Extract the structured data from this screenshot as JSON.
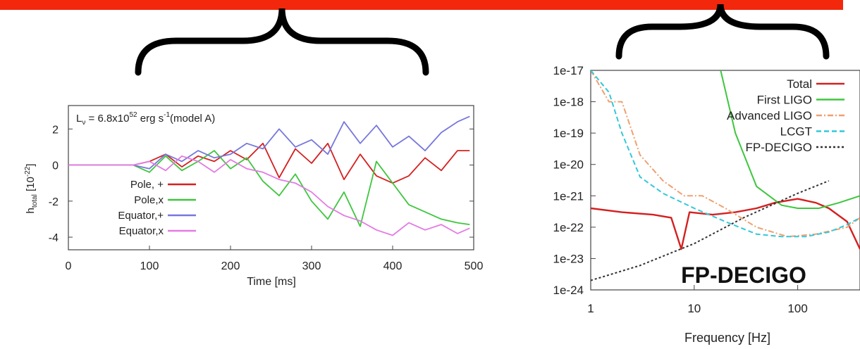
{
  "banner": {
    "color": "#f2270c"
  },
  "charts": {
    "left": {
      "annotation_main": "L",
      "annotation_sub": "ν",
      "annotation_eq": " = 6.8x10",
      "annotation_sup": "52",
      "annotation_unit": " erg s",
      "annotation_unit_sup": "-1",
      "annotation_model": "(model A)",
      "ylabel_main": "h",
      "ylabel_sub": "total",
      "ylabel_unit": " [10",
      "ylabel_unit_sup": "-22",
      "ylabel_close": "]"
    },
    "right": {
      "watermark": "FP-DECIGO"
    }
  },
  "chart_data": [
    {
      "type": "line",
      "xlabel": "Time [ms]",
      "ylabel": "h_total [10^-22]",
      "xlim": [
        0,
        500
      ],
      "ylim": [
        -4.7,
        3.3
      ],
      "xticks": [
        0,
        100,
        200,
        300,
        400,
        500
      ],
      "yticks": [
        2,
        0,
        -2,
        -4
      ],
      "legend_position": "bottom-left",
      "series": [
        {
          "name": "Pole, +",
          "color": "#d42020",
          "x": [
            0,
            80,
            100,
            120,
            140,
            160,
            180,
            200,
            220,
            240,
            260,
            280,
            300,
            320,
            340,
            360,
            380,
            400,
            420,
            440,
            460,
            480,
            495
          ],
          "y": [
            0,
            0,
            0.2,
            0.6,
            -0.1,
            0.5,
            0.2,
            0.8,
            0.3,
            1.2,
            -0.7,
            0.9,
            0.1,
            1.2,
            -0.8,
            0.6,
            -0.6,
            -1.0,
            -0.6,
            0.4,
            -0.3,
            0.8,
            0.8
          ]
        },
        {
          "name": "Pole,x",
          "color": "#3ec63e",
          "x": [
            0,
            80,
            100,
            120,
            140,
            160,
            180,
            200,
            220,
            240,
            260,
            280,
            300,
            320,
            340,
            360,
            380,
            400,
            420,
            440,
            460,
            480,
            495
          ],
          "y": [
            0,
            0,
            -0.4,
            0.5,
            -0.3,
            0.2,
            0.8,
            -0.2,
            0.4,
            -0.9,
            -1.7,
            -0.5,
            -2.0,
            -3.0,
            -1.5,
            -3.4,
            0.2,
            -1.0,
            -2.2,
            -2.6,
            -3.0,
            -3.2,
            -3.3
          ]
        },
        {
          "name": "Equator,+",
          "color": "#7777dd",
          "x": [
            0,
            80,
            100,
            120,
            140,
            160,
            180,
            200,
            220,
            240,
            260,
            280,
            300,
            320,
            340,
            360,
            380,
            400,
            420,
            440,
            460,
            480,
            495
          ],
          "y": [
            0,
            0,
            -0.2,
            0.6,
            0.2,
            0.8,
            0.4,
            0.6,
            1.2,
            0.9,
            2.0,
            1.0,
            1.4,
            0.6,
            2.4,
            1.2,
            2.2,
            1.0,
            1.6,
            0.8,
            1.8,
            2.4,
            2.7
          ]
        },
        {
          "name": "Equator,x",
          "color": "#e37ae3",
          "x": [
            0,
            80,
            100,
            120,
            140,
            160,
            180,
            200,
            220,
            240,
            260,
            280,
            300,
            320,
            340,
            360,
            380,
            400,
            420,
            440,
            460,
            480,
            495
          ],
          "y": [
            0,
            0,
            0.2,
            -0.3,
            0.5,
            0.2,
            -0.4,
            0.3,
            -0.2,
            -0.4,
            -0.8,
            -1.0,
            -1.5,
            -2.3,
            -2.8,
            -3.1,
            -3.6,
            -3.9,
            -3.2,
            -3.6,
            -3.3,
            -3.8,
            -3.5
          ]
        }
      ]
    },
    {
      "type": "line",
      "xlabel": "Frequency [Hz]",
      "xscale": "log",
      "yscale": "log",
      "xlim": [
        1,
        400
      ],
      "ylim": [
        1e-24,
        1e-17
      ],
      "xticks": [
        1,
        10,
        100
      ],
      "xtick_labels": [
        "1",
        "10",
        "100"
      ],
      "yticks": [
        1e-17,
        1e-18,
        1e-19,
        1e-20,
        1e-21,
        1e-22,
        1e-23,
        1e-24
      ],
      "ytick_labels": [
        "1e-17",
        "1e-18",
        "1e-19",
        "1e-20",
        "1e-21",
        "1e-22",
        "1e-23",
        "1e-24"
      ],
      "legend_position": "top-right",
      "series": [
        {
          "name": "Total",
          "color": "#d42020",
          "dash": "solid",
          "x": [
            1,
            2,
            4,
            6,
            7.5,
            9,
            15,
            25,
            40,
            60,
            100,
            150,
            200,
            300,
            400
          ],
          "y": [
            4e-22,
            3e-22,
            2.5e-22,
            2e-22,
            2e-23,
            3e-22,
            2.5e-22,
            3e-22,
            4e-22,
            6e-22,
            8e-22,
            6e-22,
            4e-22,
            1.5e-22,
            2e-23
          ]
        },
        {
          "name": "First LIGO",
          "color": "#3ec63e",
          "dash": "solid",
          "x": [
            18,
            25,
            40,
            70,
            100,
            160,
            250,
            400
          ],
          "y": [
            1e-17,
            1e-19,
            2e-21,
            5e-22,
            4e-22,
            4e-22,
            6e-22,
            1e-21
          ]
        },
        {
          "name": "Advanced LIGO",
          "color": "#f0a070",
          "dash": "dashdot",
          "x": [
            1,
            1.5,
            2,
            3,
            5,
            8,
            12,
            20,
            40,
            80,
            150,
            300,
            400
          ],
          "y": [
            1e-17,
            1e-18,
            1e-18,
            2e-20,
            3e-21,
            1e-21,
            1e-21,
            4e-22,
            1e-22,
            5e-23,
            6e-23,
            1e-22,
            2e-22
          ]
        },
        {
          "name": "LCGT",
          "color": "#33c8d8",
          "dash": "dashed",
          "x": [
            1,
            1.5,
            2,
            3,
            5,
            10,
            20,
            40,
            70,
            120,
            200,
            300,
            400
          ],
          "y": [
            1e-17,
            2e-18,
            1e-19,
            4e-21,
            1.2e-21,
            4e-22,
            1.5e-22,
            6e-23,
            5e-23,
            5e-23,
            7e-23,
            1.2e-22,
            2e-22
          ]
        },
        {
          "name": "FP-DECIGO",
          "color": "#333333",
          "dash": "dotted",
          "x": [
            1,
            3,
            10,
            30,
            100,
            200
          ],
          "y": [
            2e-24,
            6e-24,
            3e-23,
            2e-22,
            1.2e-21,
            3e-21
          ]
        }
      ]
    }
  ]
}
